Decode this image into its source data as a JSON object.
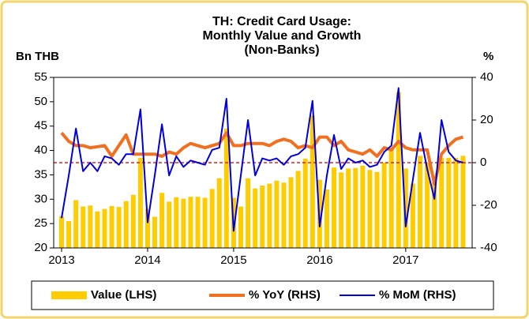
{
  "chart_data": {
    "type": "bar-line",
    "title": [
      "TH: Credit Card Usage:",
      "Monthly Value and Growth",
      "(Non-Banks)"
    ],
    "y_label": "Bn THB",
    "y2_label": "%",
    "categories": [
      "2013",
      null,
      null,
      null,
      null,
      null,
      null,
      null,
      null,
      null,
      null,
      null,
      "2014",
      null,
      null,
      null,
      null,
      null,
      null,
      null,
      null,
      null,
      null,
      null,
      "2015",
      null,
      null,
      null,
      null,
      null,
      null,
      null,
      null,
      null,
      null,
      null,
      "2016",
      null,
      null,
      null,
      null,
      null,
      null,
      null,
      null,
      null,
      null,
      null,
      "2017",
      null,
      null,
      null,
      null,
      null,
      null,
      null,
      null
    ],
    "series": [
      {
        "name": "Value (LHS)",
        "type": "bar",
        "color": "#ffcc00",
        "values": [
          26.5,
          25.5,
          29.8,
          28.5,
          28.7,
          27.5,
          28,
          28.6,
          28.4,
          29.6,
          30.9,
          38.5,
          28,
          26.4,
          31.3,
          29.5,
          30.4,
          30.1,
          30.5,
          30.5,
          30.3,
          32.1,
          34.3,
          44.5,
          30.3,
          28.5,
          34.3,
          32.2,
          32.8,
          33.2,
          33.8,
          33.4,
          34.5,
          35.8,
          38.3,
          47.2,
          34,
          32,
          36.5,
          35.5,
          36.3,
          36.4,
          36.9,
          36,
          35.6,
          37.5,
          40.5,
          52,
          36.3,
          33.2,
          38.9,
          37.5,
          33.5,
          38.5,
          38.5,
          38.5,
          38.9
        ]
      },
      {
        "name": "% YoY (RHS)",
        "type": "line",
        "axis": "y2",
        "color": "#f07020",
        "values": [
          14,
          10,
          8,
          8,
          7,
          7.5,
          8,
          3,
          8,
          13,
          4,
          4,
          4,
          4,
          3,
          5,
          4,
          7,
          9,
          8,
          7,
          8,
          9,
          14,
          8,
          8,
          9,
          9,
          9,
          8,
          10,
          11,
          10,
          7,
          8,
          7,
          12,
          12,
          8,
          10,
          6,
          5,
          4,
          6,
          3,
          7,
          6,
          10,
          7,
          6,
          6,
          6,
          -10,
          4,
          8,
          11,
          12
        ]
      },
      {
        "name": "% MoM (RHS)",
        "type": "line",
        "axis": "y2",
        "color": "#0000dd",
        "values": [
          -26,
          -6,
          16,
          -4,
          0,
          -4,
          3,
          2,
          -1,
          4,
          4,
          25,
          -28,
          -6,
          18,
          -6,
          3,
          -2,
          1,
          0,
          -1,
          6,
          7,
          30,
          -32,
          -6,
          20,
          -6,
          2,
          1,
          2,
          -1,
          3,
          4,
          7,
          29,
          -30,
          -6,
          13,
          -3,
          2,
          0,
          1,
          -2,
          -1,
          5,
          8,
          35,
          -30,
          -8,
          14,
          -3,
          -17,
          20,
          5,
          1,
          0
        ]
      }
    ],
    "ylim": [
      20,
      55
    ],
    "yticks": [
      20,
      25,
      30,
      35,
      40,
      45,
      50,
      55
    ],
    "y2lim": [
      -40,
      40
    ],
    "y2ticks": [
      -40,
      -20,
      0,
      20,
      40
    ],
    "reference_line": {
      "value": 0,
      "axis": "y2",
      "color": "#e02020"
    },
    "legend": "bottom"
  }
}
